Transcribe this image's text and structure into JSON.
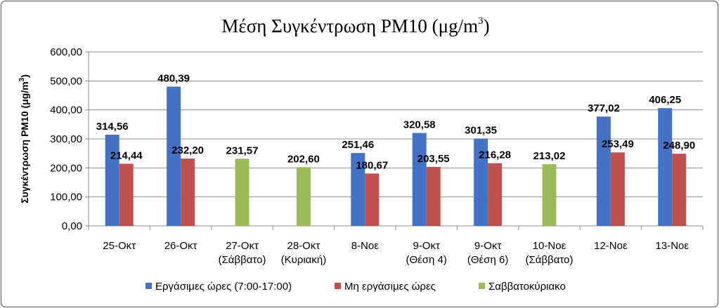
{
  "chart_data": {
    "type": "bar",
    "title": "Μέση Συγκέντρωση PM10 (μg/m",
    "title_superscript": "3",
    "title_suffix": ")",
    "ylabel": "Συγκέντρωση PM10 (μg/m",
    "ylabel_superscript": "3",
    "ylabel_suffix": ")",
    "xlabel": "",
    "ylim": [
      0,
      600
    ],
    "yticks": [
      "0,00",
      "100,00",
      "200,00",
      "300,00",
      "400,00",
      "500,00",
      "600,00"
    ],
    "grid": true,
    "legend_position": "bottom",
    "categories": [
      {
        "line1": "25-Οκτ",
        "line2": ""
      },
      {
        "line1": "26-Οκτ",
        "line2": ""
      },
      {
        "line1": "27-Οκτ",
        "line2": "(Σάββατο)"
      },
      {
        "line1": "28-Οκτ",
        "line2": "(Κυριακή)"
      },
      {
        "line1": "8-Νοε",
        "line2": ""
      },
      {
        "line1": "9-Οκτ",
        "line2": "(Θέση 4)"
      },
      {
        "line1": "9-Οκτ",
        "line2": "(Θέση 6)"
      },
      {
        "line1": "10-Νοε",
        "line2": "(Σάββατο)"
      },
      {
        "line1": "12-Νοε",
        "line2": ""
      },
      {
        "line1": "13-Νοε",
        "line2": ""
      }
    ],
    "series": [
      {
        "name": "Εργάσιμες ώρες (7:00-17:00)",
        "color": "#4472C4",
        "values": [
          314.56,
          480.39,
          null,
          null,
          251.46,
          320.58,
          301.35,
          null,
          377.02,
          406.25
        ],
        "labels": [
          "314,56",
          "480,39",
          "",
          "",
          "251,46",
          "320,58",
          "301,35",
          "",
          "377,02",
          "406,25"
        ]
      },
      {
        "name": "Μη εργάσιμες ώρες",
        "color": "#C0504D",
        "values": [
          214.44,
          232.2,
          null,
          null,
          180.67,
          203.55,
          216.28,
          null,
          253.49,
          248.9
        ],
        "labels": [
          "214,44",
          "232,20",
          "",
          "",
          "180,67",
          "203,55",
          "216,28",
          "",
          "253,49",
          "248,90"
        ]
      },
      {
        "name": "Σαββατοκύριακο",
        "color": "#9BBB59",
        "values": [
          null,
          null,
          231.57,
          202.6,
          null,
          null,
          null,
          213.02,
          null,
          null
        ],
        "labels": [
          "",
          "",
          "231,57",
          "202,60",
          "",
          "",
          "",
          "213,02",
          "",
          ""
        ]
      }
    ]
  }
}
